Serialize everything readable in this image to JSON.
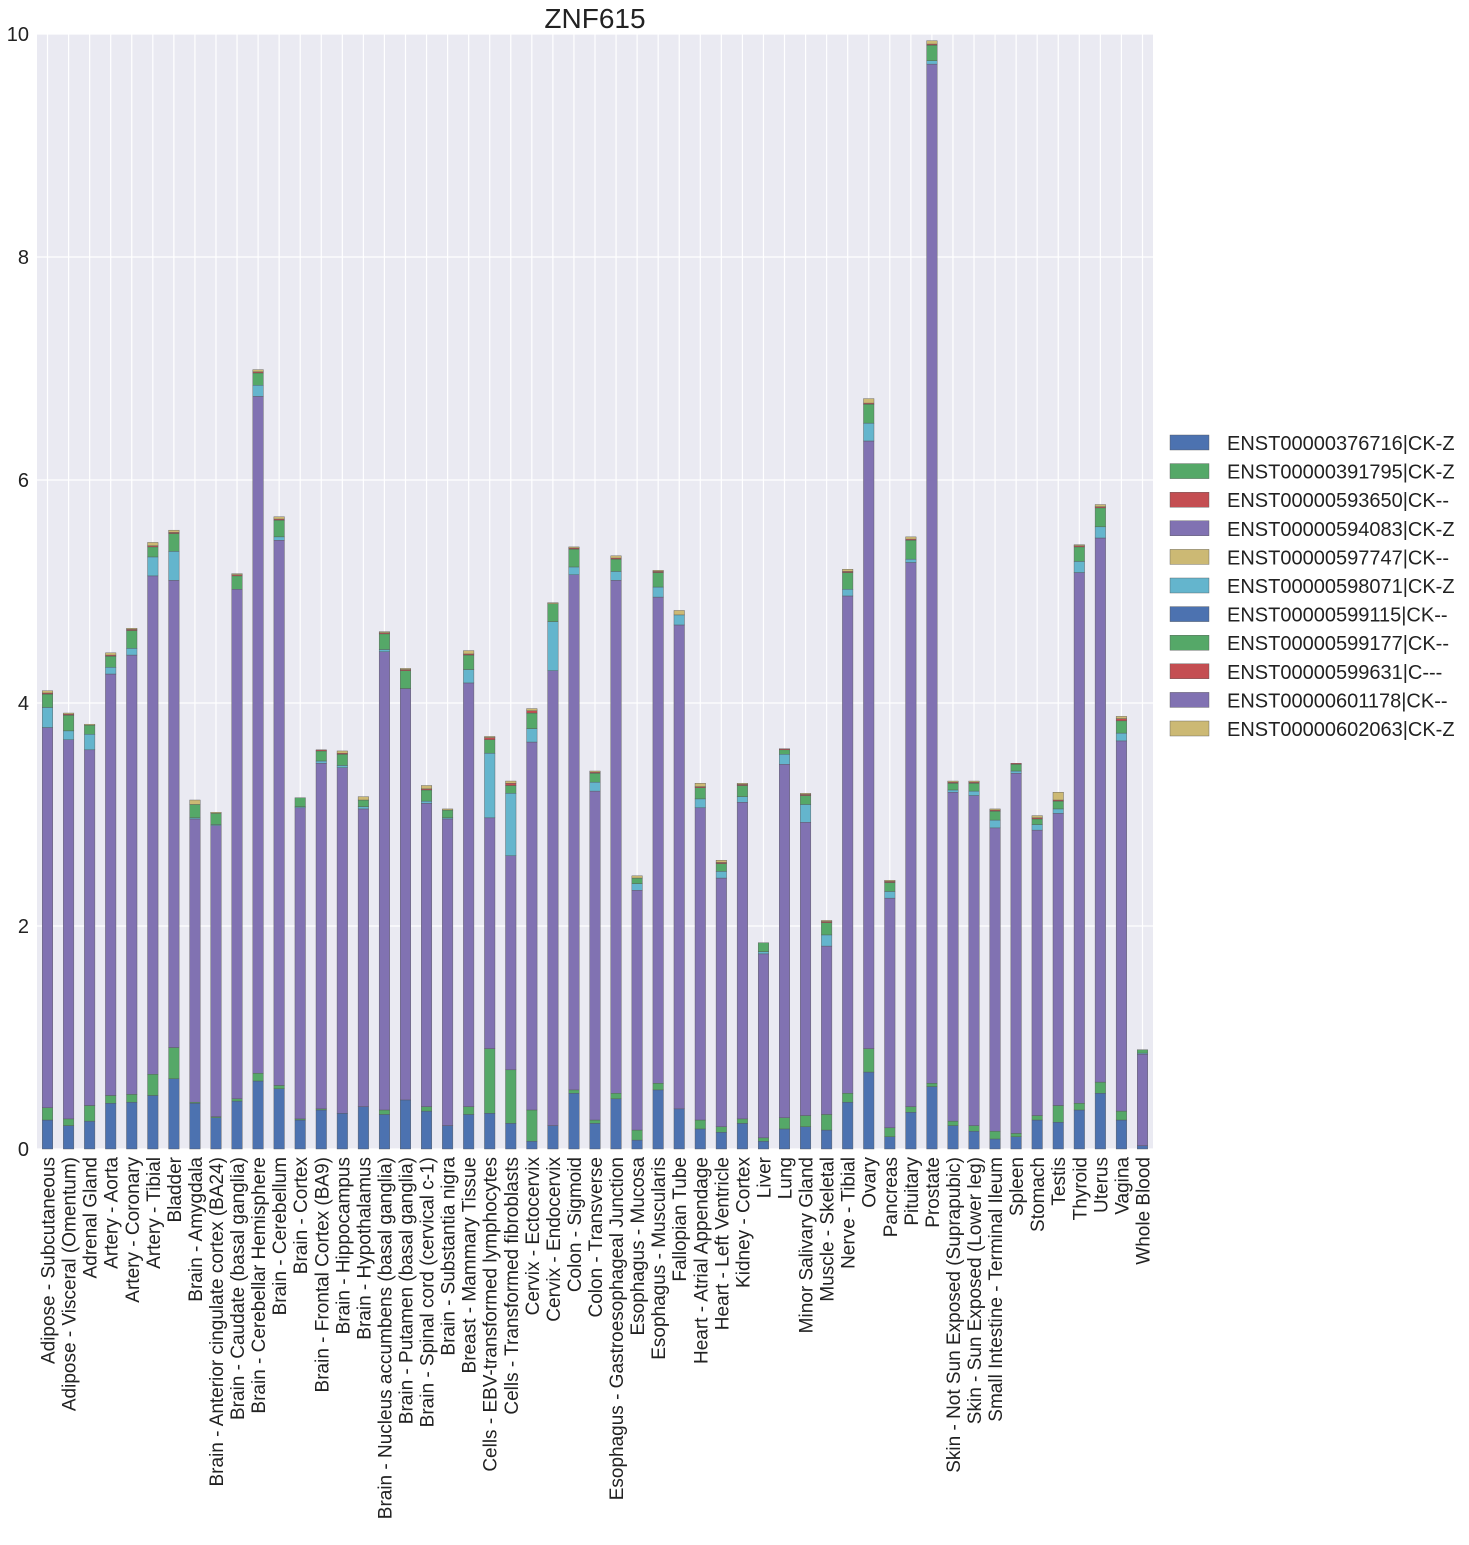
{
  "chart_data": {
    "type": "bar",
    "stacked": true,
    "title": "ZNF615",
    "xlabel": "",
    "ylabel": "",
    "ylim": [
      0,
      10
    ],
    "yticks": [
      0,
      2,
      4,
      6,
      8,
      10
    ],
    "grid": true,
    "legend_position": "right",
    "categories": [
      "Adipose - Subcutaneous",
      "Adipose - Visceral (Omentum)",
      "Adrenal Gland",
      "Artery - Aorta",
      "Artery - Coronary",
      "Artery - Tibial",
      "Bladder",
      "Brain - Amygdala",
      "Brain - Anterior cingulate cortex (BA24)",
      "Brain - Caudate (basal ganglia)",
      "Brain - Cerebellar Hemisphere",
      "Brain - Cerebellum",
      "Brain - Cortex",
      "Brain - Frontal Cortex (BA9)",
      "Brain - Hippocampus",
      "Brain - Hypothalamus",
      "Brain - Nucleus accumbens (basal ganglia)",
      "Brain - Putamen (basal ganglia)",
      "Brain - Spinal cord (cervical c-1)",
      "Brain - Substantia nigra",
      "Breast - Mammary Tissue",
      "Cells - EBV-transformed lymphocytes",
      "Cells - Transformed fibroblasts",
      "Cervix - Ectocervix",
      "Cervix - Endocervix",
      "Colon - Sigmoid",
      "Colon - Transverse",
      "Esophagus - Gastroesophageal Junction",
      "Esophagus - Mucosa",
      "Esophagus - Muscularis",
      "Fallopian Tube",
      "Heart - Atrial Appendage",
      "Heart - Left Ventricle",
      "Kidney - Cortex",
      "Liver",
      "Lung",
      "Minor Salivary Gland",
      "Muscle - Skeletal",
      "Nerve - Tibial",
      "Ovary",
      "Pancreas",
      "Pituitary",
      "Prostate",
      "Skin - Not Sun Exposed (Suprapubic)",
      "Skin - Sun Exposed (Lower leg)",
      "Small Intestine - Terminal Ileum",
      "Spleen",
      "Stomach",
      "Testis",
      "Thyroid",
      "Uterus",
      "Vagina",
      "Whole Blood"
    ],
    "series": [
      {
        "name": "ENST00000376716|CK-Z",
        "color": "#4c72b0",
        "values": [
          0.26,
          0.21,
          0.25,
          0.41,
          0.42,
          0.48,
          0.63,
          0.41,
          0.28,
          0.43,
          0.61,
          0.54,
          0.26,
          0.35,
          0.32,
          0.38,
          0.31,
          0.44,
          0.34,
          0.21,
          0.31,
          0.32,
          0.23,
          0.07,
          0.21,
          0.5,
          0.23,
          0.45,
          0.08,
          0.53,
          0.36,
          0.18,
          0.15,
          0.23,
          0.07,
          0.18,
          0.2,
          0.17,
          0.42,
          0.69,
          0.11,
          0.33,
          0.56,
          0.21,
          0.16,
          0.09,
          0.11,
          0.26,
          0.24,
          0.35,
          0.5,
          0.26,
          0.03
        ]
      },
      {
        "name": "ENST00000391795|CK-Z",
        "color": "#55a868",
        "values": [
          0.11,
          0.06,
          0.14,
          0.07,
          0.07,
          0.19,
          0.28,
          0.01,
          0.01,
          0.02,
          0.07,
          0.03,
          0.01,
          0.01,
          0.0,
          0.0,
          0.04,
          0.0,
          0.04,
          0.0,
          0.07,
          0.58,
          0.48,
          0.28,
          0.0,
          0.03,
          0.03,
          0.05,
          0.09,
          0.06,
          0.0,
          0.08,
          0.05,
          0.04,
          0.03,
          0.1,
          0.1,
          0.14,
          0.08,
          0.21,
          0.08,
          0.05,
          0.03,
          0.04,
          0.05,
          0.07,
          0.03,
          0.04,
          0.15,
          0.06,
          0.1,
          0.08,
          0.0
        ]
      },
      {
        "name": "ENST00000593650|CK--",
        "color": "#c44e52",
        "values": [
          0.0,
          0.0,
          0.0,
          0.0,
          0.0,
          0.0,
          0.0,
          0.0,
          0.0,
          0.0,
          0.0,
          0.0,
          0.0,
          0.0,
          0.0,
          0.0,
          0.0,
          0.0,
          0.0,
          0.0,
          0.0,
          0.0,
          0.0,
          0.0,
          0.0,
          0.0,
          0.0,
          0.0,
          0.0,
          0.0,
          0.0,
          0.0,
          0.0,
          0.0,
          0.0,
          0.0,
          0.0,
          0.0,
          0.0,
          0.0,
          0.0,
          0.0,
          0.0,
          0.0,
          0.0,
          0.0,
          0.0,
          0.0,
          0.0,
          0.0,
          0.0,
          0.0,
          0.0
        ]
      },
      {
        "name": "ENST00000594083|CK-Z",
        "color": "#8172b2",
        "values": [
          3.41,
          3.4,
          3.19,
          3.78,
          3.94,
          4.47,
          4.19,
          2.54,
          2.61,
          4.57,
          6.07,
          4.89,
          2.79,
          3.1,
          3.1,
          2.67,
          4.11,
          3.69,
          2.72,
          2.75,
          3.8,
          2.07,
          1.92,
          3.3,
          4.08,
          4.62,
          2.95,
          4.6,
          2.15,
          4.36,
          4.34,
          2.8,
          2.23,
          2.84,
          1.65,
          3.17,
          2.63,
          1.51,
          4.46,
          5.45,
          2.06,
          4.88,
          9.14,
          2.95,
          2.96,
          2.72,
          3.23,
          2.56,
          2.62,
          4.76,
          4.88,
          3.32,
          0.82
        ]
      },
      {
        "name": "ENST00000597747|CK--",
        "color": "#ccb974",
        "values": [
          0.0,
          0.0,
          0.0,
          0.0,
          0.0,
          0.0,
          0.0,
          0.0,
          0.0,
          0.0,
          0.0,
          0.0,
          0.0,
          0.0,
          0.0,
          0.0,
          0.0,
          0.0,
          0.0,
          0.0,
          0.0,
          0.0,
          0.0,
          0.0,
          0.0,
          0.0,
          0.0,
          0.0,
          0.0,
          0.0,
          0.0,
          0.0,
          0.0,
          0.0,
          0.0,
          0.0,
          0.0,
          0.0,
          0.0,
          0.0,
          0.0,
          0.0,
          0.0,
          0.0,
          0.0,
          0.0,
          0.0,
          0.0,
          0.0,
          0.0,
          0.0,
          0.0,
          0.0
        ]
      },
      {
        "name": "ENST00000598071|CK-Z",
        "color": "#64b5cd",
        "values": [
          0.18,
          0.08,
          0.14,
          0.06,
          0.06,
          0.17,
          0.26,
          0.01,
          0.01,
          0.0,
          0.1,
          0.03,
          0.01,
          0.02,
          0.02,
          0.02,
          0.02,
          0.0,
          0.02,
          0.01,
          0.12,
          0.58,
          0.56,
          0.12,
          0.44,
          0.07,
          0.08,
          0.08,
          0.06,
          0.09,
          0.09,
          0.08,
          0.06,
          0.05,
          0.02,
          0.09,
          0.16,
          0.1,
          0.06,
          0.16,
          0.06,
          0.03,
          0.03,
          0.02,
          0.04,
          0.07,
          0.02,
          0.05,
          0.04,
          0.1,
          0.1,
          0.07,
          0.01
        ]
      },
      {
        "name": "ENST00000599115|CK--",
        "color": "#4c72b0",
        "values": [
          0.0,
          0.0,
          0.0,
          0.0,
          0.0,
          0.0,
          0.0,
          0.0,
          0.0,
          0.0,
          0.0,
          0.0,
          0.0,
          0.0,
          0.0,
          0.0,
          0.0,
          0.0,
          0.0,
          0.0,
          0.0,
          0.0,
          0.0,
          0.0,
          0.0,
          0.0,
          0.0,
          0.0,
          0.0,
          0.0,
          0.0,
          0.0,
          0.0,
          0.0,
          0.0,
          0.0,
          0.0,
          0.0,
          0.0,
          0.0,
          0.0,
          0.0,
          0.0,
          0.0,
          0.0,
          0.0,
          0.0,
          0.0,
          0.0,
          0.0,
          0.0,
          0.0,
          0.0
        ]
      },
      {
        "name": "ENST00000599177|CK--",
        "color": "#55a868",
        "values": [
          0.12,
          0.14,
          0.08,
          0.1,
          0.16,
          0.09,
          0.16,
          0.12,
          0.1,
          0.12,
          0.11,
          0.15,
          0.08,
          0.09,
          0.1,
          0.06,
          0.14,
          0.16,
          0.1,
          0.07,
          0.13,
          0.12,
          0.07,
          0.14,
          0.16,
          0.16,
          0.08,
          0.11,
          0.05,
          0.13,
          0.0,
          0.1,
          0.07,
          0.1,
          0.08,
          0.04,
          0.08,
          0.11,
          0.15,
          0.17,
          0.08,
          0.17,
          0.14,
          0.06,
          0.07,
          0.08,
          0.06,
          0.05,
          0.07,
          0.13,
          0.17,
          0.11,
          0.03
        ]
      },
      {
        "name": "ENST00000599631|C---",
        "color": "#c44e52",
        "values": [
          0.01,
          0.01,
          0.0,
          0.01,
          0.01,
          0.01,
          0.01,
          0.0,
          0.0,
          0.01,
          0.01,
          0.01,
          0.0,
          0.01,
          0.01,
          0.0,
          0.01,
          0.01,
          0.01,
          0.0,
          0.01,
          0.02,
          0.02,
          0.02,
          0.0,
          0.01,
          0.01,
          0.01,
          0.0,
          0.01,
          0.0,
          0.01,
          0.01,
          0.01,
          0.0,
          0.01,
          0.01,
          0.01,
          0.01,
          0.01,
          0.01,
          0.01,
          0.01,
          0.01,
          0.01,
          0.01,
          0.01,
          0.01,
          0.01,
          0.01,
          0.01,
          0.02,
          0.0
        ]
      },
      {
        "name": "ENST00000601178|CK--",
        "color": "#8172b2",
        "values": [
          0.0,
          0.0,
          0.0,
          0.0,
          0.0,
          0.0,
          0.0,
          0.0,
          0.0,
          0.0,
          0.0,
          0.0,
          0.0,
          0.0,
          0.0,
          0.0,
          0.0,
          0.0,
          0.0,
          0.0,
          0.0,
          0.0,
          0.0,
          0.0,
          0.0,
          0.0,
          0.0,
          0.0,
          0.0,
          0.0,
          0.0,
          0.0,
          0.0,
          0.0,
          0.0,
          0.0,
          0.0,
          0.0,
          0.0,
          0.0,
          0.0,
          0.0,
          0.0,
          0.0,
          0.0,
          0.0,
          0.0,
          0.0,
          0.0,
          0.0,
          0.0,
          0.0,
          0.0
        ]
      },
      {
        "name": "ENST00000602063|CK-Z",
        "color": "#ccb974",
        "values": [
          0.02,
          0.01,
          0.01,
          0.02,
          0.01,
          0.03,
          0.02,
          0.04,
          0.01,
          0.01,
          0.02,
          0.02,
          0.0,
          0.0,
          0.02,
          0.03,
          0.01,
          0.01,
          0.03,
          0.01,
          0.03,
          0.01,
          0.02,
          0.02,
          0.01,
          0.01,
          0.01,
          0.02,
          0.02,
          0.01,
          0.04,
          0.03,
          0.02,
          0.01,
          0.0,
          0.0,
          0.01,
          0.01,
          0.02,
          0.04,
          0.01,
          0.02,
          0.03,
          0.01,
          0.01,
          0.01,
          0.0,
          0.02,
          0.07,
          0.01,
          0.02,
          0.02,
          0.0
        ]
      }
    ]
  }
}
